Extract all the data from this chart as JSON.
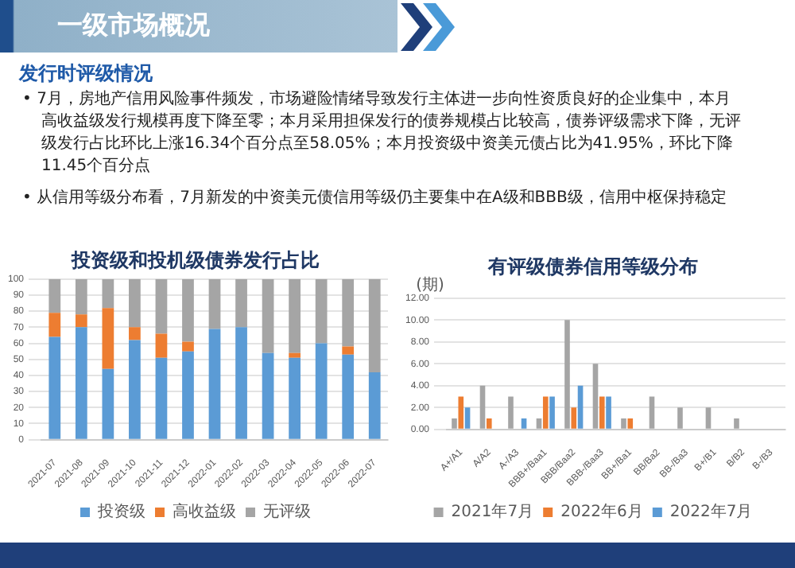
{
  "chart_data": [
    {
      "type": "other",
      "title": "一级市场概况",
      "subtitle": "发行时评级情况",
      "annotations": [
        "• 7月，房地产信用风险事件频发，市场避险情绪导致发行主体进一步向性资质良好的企业集中，本月高收益级发行规模再度下降至零；本月采用担保发行的债券规模占比较高，债券评级需求下降，无评级发行占比环比上涨16.34个百分点至58.05%；本月投资级中资美元债占比为41.95%，环比下降11.45个百分点",
        "• 从信用等级分布看，7月新发的中资美元债信用等级仍主要集中在A级和BBB级，信用中枢保持稳定"
      ]
    },
    {
      "type": "bar",
      "title": "投资级和投机级债券发行占比",
      "stacked": true,
      "legend": "bottom",
      "grid": "y",
      "categories": [
        "2021-07",
        "2021-08",
        "2021-09",
        "2021-10",
        "2021-11",
        "2021-12",
        "2022-01",
        "2022-02",
        "2022-03",
        "2022-04",
        "2022-05",
        "2022-06",
        "2022-07"
      ],
      "ylim": [
        0,
        100
      ],
      "yticks": [
        0,
        10,
        20,
        30,
        40,
        50,
        60,
        70,
        80,
        90,
        100
      ],
      "series": [
        {
          "name": "投资级",
          "color": "#5b9bd5",
          "values": [
            64,
            70,
            44,
            62,
            51,
            55,
            69,
            70,
            54,
            51,
            60,
            53,
            41.95
          ]
        },
        {
          "name": "高收益级",
          "color": "#ed7d31",
          "values": [
            15,
            8,
            38,
            8,
            15,
            6,
            0,
            0,
            0,
            3,
            0,
            5,
            0
          ]
        },
        {
          "name": "无评级",
          "color": "#a5a5a5",
          "values": [
            21,
            22,
            18,
            30,
            34,
            39,
            31,
            30,
            46,
            46,
            40,
            42,
            58.05
          ]
        }
      ]
    },
    {
      "type": "bar",
      "title": "有评级债券信用等级分布",
      "ylabel": "(期)",
      "legend": "bottom",
      "grid": "y",
      "categories": [
        "A+/A1",
        "A/A2",
        "A-/A3",
        "BBB+/Baa1",
        "BBB/Baa2",
        "BBB-/Baa3",
        "BB+/Ba1",
        "BB/Ba2",
        "BB-/Ba3",
        "B+/B1",
        "B/B2",
        "B-/B3"
      ],
      "ylim": [
        0,
        12
      ],
      "yticks": [
        {
          "value": 0,
          "label": "0.00"
        },
        {
          "value": 2,
          "label": "2.00"
        },
        {
          "value": 4,
          "label": "4.00"
        },
        {
          "value": 6,
          "label": "6.00"
        },
        {
          "value": 8,
          "label": "8.00"
        },
        {
          "value": 10,
          "label": "10.00"
        },
        {
          "value": 12,
          "label": "12.00"
        }
      ],
      "series": [
        {
          "name": "2021年7月",
          "color": "#a5a5a5",
          "values": [
            1,
            4,
            3,
            1,
            10,
            6,
            1,
            3,
            2,
            2,
            1,
            0
          ]
        },
        {
          "name": "2022年6月",
          "color": "#ed7d31",
          "values": [
            3,
            1,
            0,
            3,
            2,
            3,
            1,
            0,
            0,
            0,
            0,
            0
          ]
        },
        {
          "name": "2022年7月",
          "color": "#5b9bd5",
          "values": [
            2,
            0,
            1,
            3,
            4,
            3,
            0,
            0,
            0,
            0,
            0,
            0
          ]
        }
      ]
    }
  ]
}
